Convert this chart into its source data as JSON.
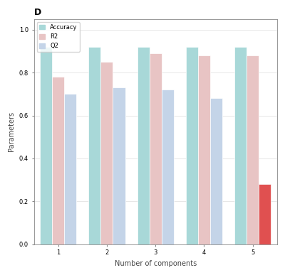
{
  "title": "D",
  "legend_labels": [
    "Accuracy",
    "R2",
    "Q2"
  ],
  "bar_colors": [
    "#a8d8d8",
    "#e8c4c4",
    "#c4d4e8"
  ],
  "x_labels": [
    "1",
    "2",
    "3",
    "4",
    "5"
  ],
  "n_components": 5,
  "accuracy": [
    0.92,
    0.92,
    0.92,
    0.92,
    0.92
  ],
  "r2": [
    0.78,
    0.85,
    0.89,
    0.88,
    0.88
  ],
  "q2": [
    0.7,
    0.73,
    0.72,
    0.68,
    0.28
  ],
  "xlabel": "Number of components",
  "ylabel": "Parameters",
  "ylim": [
    0.0,
    1.05
  ],
  "yticks": [
    0.0,
    0.2,
    0.4,
    0.6,
    0.8,
    1.0
  ],
  "fig_width": 4.0,
  "fig_height": 3.87,
  "bar_width": 0.25,
  "edge_color": "white",
  "spine_color": "#888888",
  "grid_color": "#dddddd",
  "title_fontsize": 9,
  "label_fontsize": 7,
  "tick_fontsize": 6,
  "legend_fontsize": 6
}
